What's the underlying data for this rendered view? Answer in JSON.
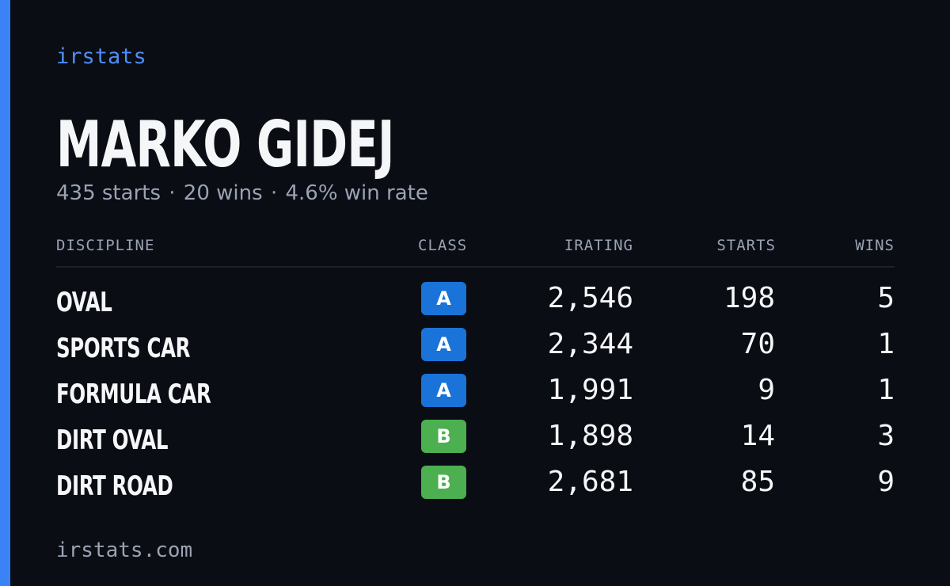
{
  "brand": "irstats",
  "driver_name": "MARKO GIDEJ",
  "summary": {
    "starts": "435 starts",
    "wins": "20 wins",
    "win_rate": "4.6% win rate",
    "separator": "·"
  },
  "table": {
    "headers": {
      "discipline": "DISCIPLINE",
      "class": "CLASS",
      "irating": "IRATING",
      "starts": "STARTS",
      "wins": "WINS"
    },
    "rows": [
      {
        "discipline": "OVAL",
        "class": "A",
        "irating": "2,546",
        "starts": "198",
        "wins": "5"
      },
      {
        "discipline": "SPORTS CAR",
        "class": "A",
        "irating": "2,344",
        "starts": "70",
        "wins": "1"
      },
      {
        "discipline": "FORMULA CAR",
        "class": "A",
        "irating": "1,991",
        "starts": "9",
        "wins": "1"
      },
      {
        "discipline": "DIRT OVAL",
        "class": "B",
        "irating": "1,898",
        "starts": "14",
        "wins": "3"
      },
      {
        "discipline": "DIRT ROAD",
        "class": "B",
        "irating": "2,681",
        "starts": "85",
        "wins": "9"
      }
    ]
  },
  "footer": "irstats.com",
  "colors": {
    "background": "#0b0d14",
    "accent": "#3b82f6",
    "brand_text": "#4f8ef7",
    "muted_text": "#9aa3b2",
    "class_A": "#1a73d8",
    "class_B": "#4caf50"
  }
}
